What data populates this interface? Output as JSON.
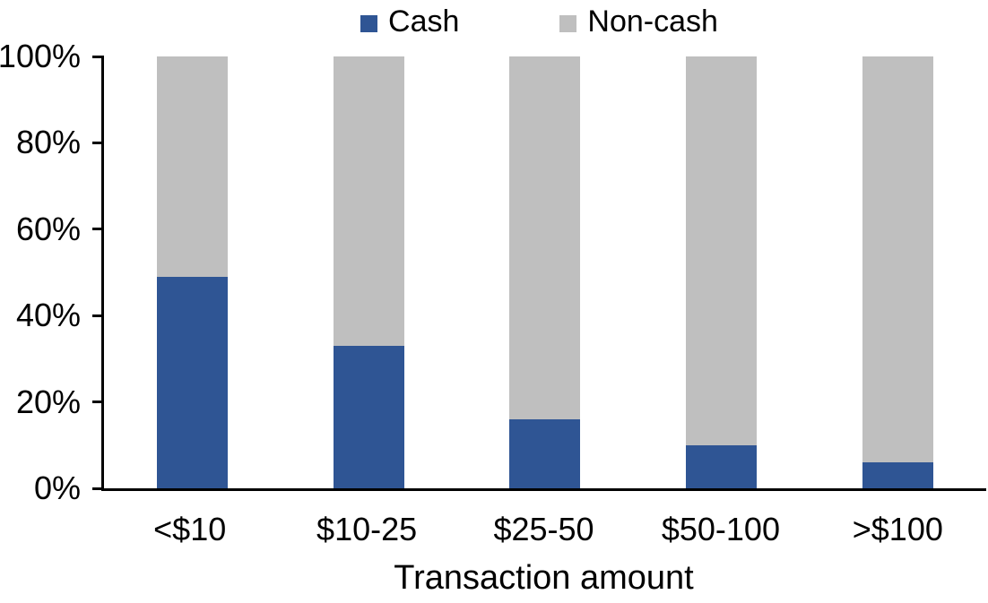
{
  "legend": {
    "items": [
      {
        "label": "Cash",
        "color": "#2F5594"
      },
      {
        "label": "Non-cash",
        "color": "#BFBFBF"
      }
    ]
  },
  "chart_data": {
    "type": "bar",
    "stacked": true,
    "title": "",
    "xlabel": "Transaction amount",
    "ylabel": "",
    "categories": [
      "<$10",
      "$10-25",
      "$25-50",
      "$50-100",
      ">$100"
    ],
    "series": [
      {
        "name": "Cash",
        "color": "#2F5594",
        "values": [
          49,
          33,
          16,
          10,
          6
        ]
      },
      {
        "name": "Non-cash",
        "color": "#BFBFBF",
        "values": [
          51,
          67,
          84,
          90,
          94
        ]
      }
    ],
    "ylim": [
      0,
      100
    ],
    "yticks": [
      "0%",
      "20%",
      "40%",
      "60%",
      "80%",
      "100%"
    ],
    "grid": false,
    "legend_position": "top-center"
  },
  "colors": {
    "axis": "#000000",
    "text": "#000000",
    "background": "#FFFFFF"
  }
}
